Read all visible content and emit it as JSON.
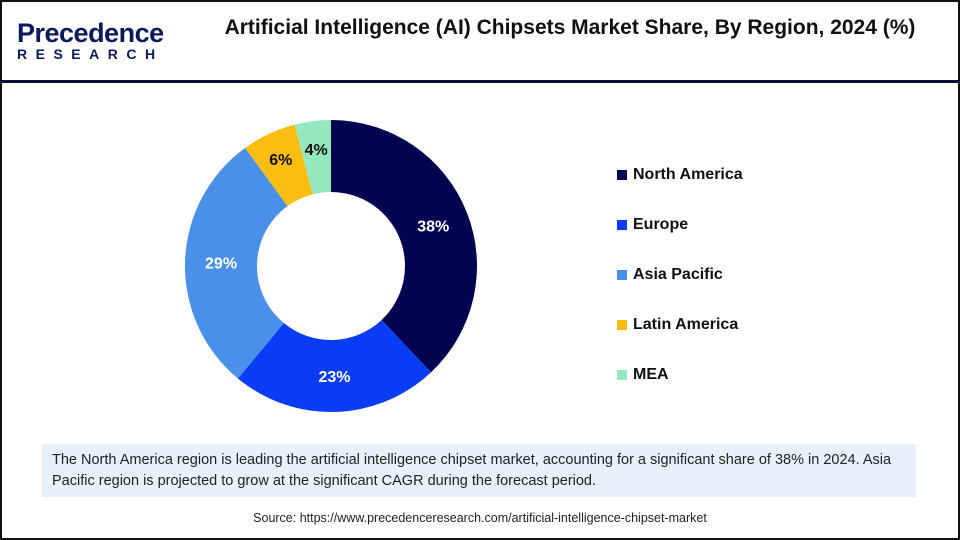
{
  "logo": {
    "text_1": "Precedence",
    "text_2": "RESEARCH"
  },
  "title": "Artificial Intelligence (AI) Chipsets Market Share, By Region, 2024 (%)",
  "chart_data": {
    "type": "pie",
    "donut": true,
    "title": "Artificial Intelligence (AI) Chipsets Market Share, By Region, 2024 (%)",
    "categories": [
      "North America",
      "Europe",
      "Asia Pacific",
      "Latin America",
      "MEA"
    ],
    "values": [
      38,
      23,
      29,
      6,
      4
    ],
    "labels": [
      "38%",
      "23%",
      "29%",
      "6%",
      "4%"
    ],
    "colors": [
      "#020452",
      "#0a3cf5",
      "#4a90e8",
      "#fbbd12",
      "#93e8bd"
    ],
    "label_colors": [
      "#ffffff",
      "#ffffff",
      "#ffffff",
      "#111111",
      "#111111"
    ],
    "legend_position": "right"
  },
  "note": "The North America region is leading the artificial intelligence chipset market, accounting for a significant share of 38% in 2024. Asia Pacific region is projected to grow at the significant CAGR during the forecast period.",
  "source": "Source: https://www.precedenceresearch.com/artificial-intelligence-chipset-market"
}
